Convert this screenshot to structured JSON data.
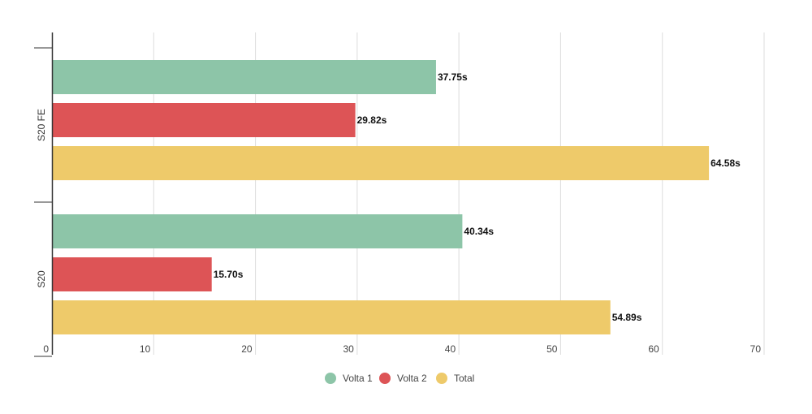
{
  "chart_data": {
    "type": "bar",
    "orientation": "horizontal",
    "title": "",
    "xlabel": "",
    "ylabel": "",
    "categories": [
      "S20 FE",
      "S20"
    ],
    "series": [
      {
        "name": "Volta 1",
        "color": "#8dc5a8",
        "values": [
          37.75,
          40.34
        ],
        "labels": [
          "37.75s",
          "40.34s"
        ]
      },
      {
        "name": "Volta 2",
        "color": "#dd5456",
        "values": [
          29.82,
          15.7
        ],
        "labels": [
          "29.82s",
          "15.70s"
        ]
      },
      {
        "name": "Total",
        "color": "#eeca6a",
        "values": [
          64.58,
          54.89
        ],
        "labels": [
          "64.58s",
          "54.89s"
        ]
      }
    ],
    "xlim": [
      0,
      70
    ],
    "xticks": [
      "0",
      "10",
      "20",
      "30",
      "40",
      "50",
      "60",
      "70"
    ],
    "grid": true,
    "legend": "bottom-center"
  }
}
